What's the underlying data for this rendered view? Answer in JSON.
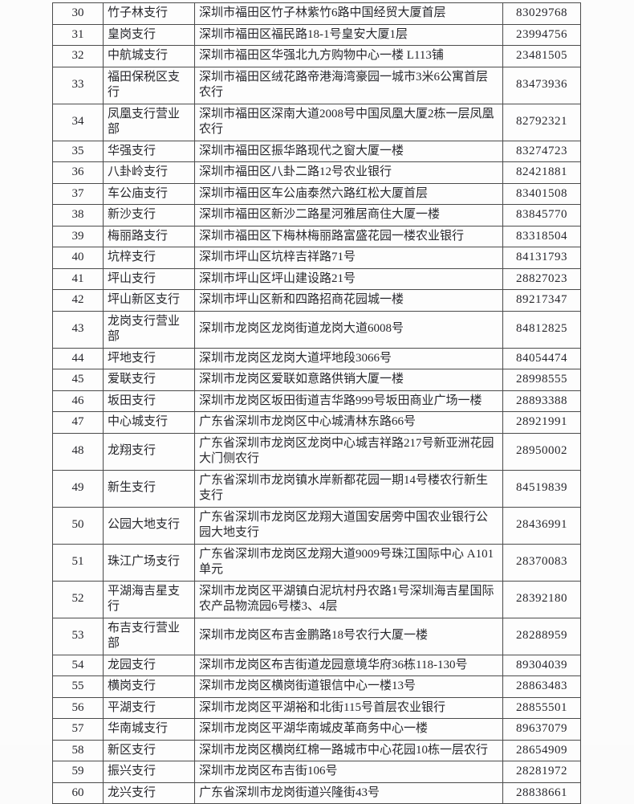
{
  "document": {
    "type": "bank-branch-directory-table",
    "colors": {
      "text": "#27272c",
      "border": "#4b4b4b",
      "background": "#fbfbfb"
    }
  },
  "table": {
    "columns": [
      {
        "key": "no",
        "name": "serial-number"
      },
      {
        "key": "branch",
        "name": "branch-name"
      },
      {
        "key": "address",
        "name": "address"
      },
      {
        "key": "phone",
        "name": "phone-number"
      }
    ],
    "rows": [
      {
        "no": "30",
        "branch": "竹子林支行",
        "address": "深圳市福田区竹子林紫竹6路中国经贸大厦首层",
        "phone": "83029768"
      },
      {
        "no": "31",
        "branch": "皇岗支行",
        "address": "深圳市福田区福民路18-1号皇安大厦1层",
        "phone": "23994756"
      },
      {
        "no": "32",
        "branch": "中航城支行",
        "address": "深圳市福田区华强北九方购物中心一楼 L113铺",
        "phone": "23481505"
      },
      {
        "no": "33",
        "branch": "福田保税区支行",
        "address": "深圳市福田区绒花路帝港海湾豪园一城市3米6公寓首层农行",
        "phone": "83473936"
      },
      {
        "no": "34",
        "branch": "凤凰支行营业部",
        "address": "深圳市福田区深南大道2008号中国凤凰大厦2栋一层凤凰农行",
        "phone": "82792321"
      },
      {
        "no": "35",
        "branch": "华强支行",
        "address": "深圳市福田区振华路现代之窗大厦一楼",
        "phone": "83274723"
      },
      {
        "no": "36",
        "branch": "八卦岭支行",
        "address": "深圳市福田区八卦二路12号农业银行",
        "phone": "82421881"
      },
      {
        "no": "37",
        "branch": "车公庙支行",
        "address": "深圳市福田区车公庙泰然六路红松大厦首层",
        "phone": "83401508"
      },
      {
        "no": "38",
        "branch": "新沙支行",
        "address": "深圳市福田区新沙二路星河雅居商住大厦一楼",
        "phone": "83845770"
      },
      {
        "no": "39",
        "branch": "梅丽路支行",
        "address": "深圳市福田区下梅林梅丽路富盛花园一楼农业银行",
        "phone": "83318504"
      },
      {
        "no": "40",
        "branch": "坑梓支行",
        "address": "深圳市坪山区坑梓吉祥路71号",
        "phone": "84131793"
      },
      {
        "no": "41",
        "branch": "坪山支行",
        "address": "深圳市坪山区坪山建设路21号",
        "phone": "28827023"
      },
      {
        "no": "42",
        "branch": "坪山新区支行",
        "address": "深圳市坪山区新和四路招商花园城一楼",
        "phone": "89217347"
      },
      {
        "no": "43",
        "branch": "龙岗支行营业部",
        "address": "深圳市龙岗区龙岗街道龙岗大道6008号",
        "phone": "84812825"
      },
      {
        "no": "44",
        "branch": "坪地支行",
        "address": "深圳市龙岗区龙岗大道坪地段3066号",
        "phone": "84054474"
      },
      {
        "no": "45",
        "branch": "爱联支行",
        "address": "深圳市龙岗区爱联如意路供销大厦一楼",
        "phone": "28998555"
      },
      {
        "no": "46",
        "branch": "坂田支行",
        "address": "深圳市龙岗区坂田街道吉华路999号坂田商业广场一楼",
        "phone": "28893388"
      },
      {
        "no": "47",
        "branch": "中心城支行",
        "address": "广东省深圳市龙岗区中心城清林东路66号",
        "phone": "28921991"
      },
      {
        "no": "48",
        "branch": "龙翔支行",
        "address": "广东省深圳市龙岗区龙岗中心城吉祥路217号新亚洲花园大门侧农行",
        "phone": "28950002"
      },
      {
        "no": "49",
        "branch": "新生支行",
        "address": "广东省深圳市龙岗镇水岸新都花园一期14号楼农行新生支行",
        "phone": "84519839"
      },
      {
        "no": "50",
        "branch": "公园大地支行",
        "address": "广东省深圳市龙岗区龙翔大道国安居旁中国农业银行公园大地支行",
        "phone": "28436991"
      },
      {
        "no": "51",
        "branch": "珠江广场支行",
        "address": "广东省深圳市龙岗区龙翔大道9009号珠江国际中心 A101单元",
        "phone": "28370083"
      },
      {
        "no": "52",
        "branch": "平湖海吉星支行",
        "address": "深圳市龙岗区平湖镇白泥坑村丹农路1号深圳海吉星国际农产品物流园6号楼3、4层",
        "phone": "28392180"
      },
      {
        "no": "53",
        "branch": "布吉支行营业部",
        "address": "深圳市龙岗区布吉金鹏路18号农行大厦一楼",
        "phone": "28288959"
      },
      {
        "no": "54",
        "branch": "龙园支行",
        "address": "深圳市龙岗区布吉街道龙园意境华府36栋118-130号",
        "phone": "89304039"
      },
      {
        "no": "55",
        "branch": "横岗支行",
        "address": "深圳市龙岗区横岗街道银信中心一楼13号",
        "phone": "28863483"
      },
      {
        "no": "56",
        "branch": "平湖支行",
        "address": "深圳市龙岗区平湖裕和北街115号首层农业银行",
        "phone": "28855501"
      },
      {
        "no": "57",
        "branch": "华南城支行",
        "address": "深圳市龙岗区平湖华南城皮革商务中心一楼",
        "phone": "89637079"
      },
      {
        "no": "58",
        "branch": "新区支行",
        "address": "深圳市龙岗区横岗红棉一路城市中心花园10栋一层农行",
        "phone": "28654909"
      },
      {
        "no": "59",
        "branch": "振兴支行",
        "address": "深圳市龙岗区布吉街106号",
        "phone": "28281972"
      },
      {
        "no": "60",
        "branch": "龙兴支行",
        "address": "广东省深圳市龙岗街道兴隆街43号",
        "phone": "28838661"
      }
    ]
  }
}
